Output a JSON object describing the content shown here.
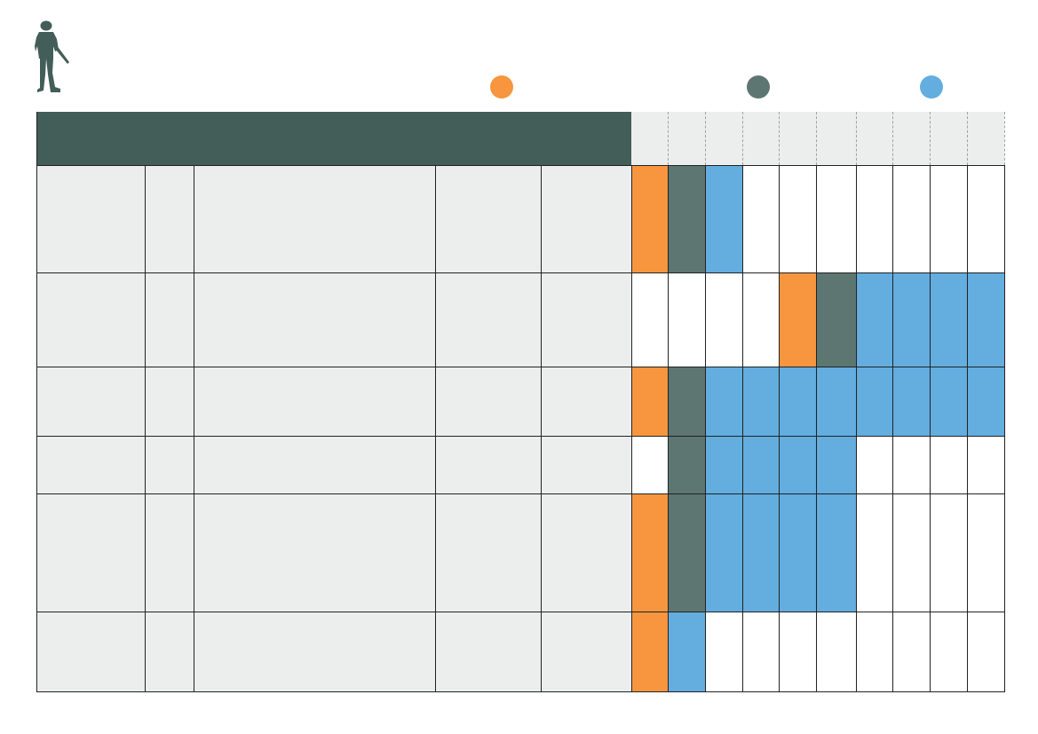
{
  "colors": {
    "orange": "#f7963f",
    "slate": "#5d7671",
    "blue": "#63addf",
    "header": "#435d59",
    "panel": "#eceeee"
  },
  "icon": "soldier-silhouette-icon",
  "legend": [
    {
      "color": "orange",
      "label": ""
    },
    {
      "color": "slate",
      "label": ""
    },
    {
      "color": "blue",
      "label": ""
    }
  ],
  "header": {
    "title": "",
    "columns": [
      "",
      "",
      "",
      "",
      "",
      "",
      "",
      "",
      "",
      ""
    ]
  },
  "rows": [
    {
      "cells": [
        "",
        "",
        "",
        "",
        ""
      ],
      "timeline": [
        "orange",
        "slate",
        "blue",
        "white",
        "white",
        "white",
        "white",
        "white",
        "white",
        "white"
      ]
    },
    {
      "cells": [
        "",
        "",
        "",
        "",
        ""
      ],
      "timeline": [
        "white",
        "white",
        "white",
        "white",
        "orange",
        "slate",
        "blue",
        "blue",
        "blue",
        "blue"
      ]
    },
    {
      "cells": [
        "",
        "",
        "",
        "",
        ""
      ],
      "timeline": [
        "orange",
        "slate",
        "blue",
        "blue",
        "blue",
        "blue",
        "blue",
        "blue",
        "blue",
        "blue"
      ]
    },
    {
      "cells": [
        "",
        "",
        "",
        "",
        ""
      ],
      "timeline": [
        "white",
        "slate",
        "blue",
        "blue",
        "blue",
        "blue",
        "white",
        "white",
        "white",
        "white"
      ]
    },
    {
      "cells": [
        "",
        "",
        "",
        "",
        ""
      ],
      "timeline": [
        "orange",
        "slate",
        "blue",
        "blue",
        "blue",
        "blue",
        "white",
        "white",
        "white",
        "white"
      ]
    },
    {
      "cells": [
        "",
        "",
        "",
        "",
        ""
      ],
      "timeline": [
        "orange",
        "blue",
        "white",
        "white",
        "white",
        "white",
        "white",
        "white",
        "white",
        "white"
      ]
    }
  ]
}
